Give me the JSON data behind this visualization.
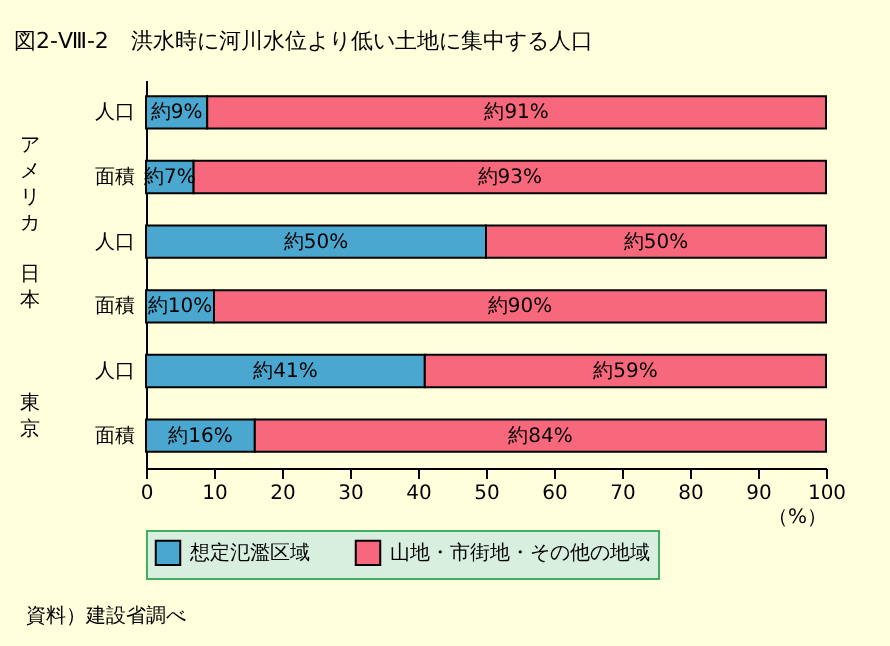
{
  "chart_data": {
    "type": "bar",
    "orientation": "horizontal",
    "stacked": true,
    "title": "図2-Ⅷ-2　洪水時に河川水位より低い土地に集中する人口",
    "categories": [
      "人口",
      "面積",
      "人口",
      "面積",
      "人口",
      "面積"
    ],
    "series": [
      {
        "name": "想定氾濫区域",
        "color": "#4aa8d0",
        "values": [
          9,
          7,
          50,
          10,
          41,
          16
        ],
        "value_labels": [
          "約9%",
          "約7%",
          "約50%",
          "約10%",
          "約41%",
          "約16%"
        ]
      },
      {
        "name": "山地・市街地・その他の地域",
        "color": "#f8687c",
        "values": [
          91,
          93,
          50,
          90,
          59,
          84
        ],
        "value_labels": [
          "約91%",
          "約93%",
          "約50%",
          "約90%",
          "約59%",
          "約84%"
        ]
      }
    ],
    "xlim": [
      0,
      100
    ],
    "xticks": [
      0,
      10,
      20,
      30,
      40,
      50,
      60,
      70,
      80,
      90,
      100
    ],
    "xlabel": "（%）",
    "legend": "bottom",
    "grid": false,
    "annotations": [
      "アメリカ",
      "日本",
      "東京",
      "資料）建設省調べ"
    ]
  }
}
